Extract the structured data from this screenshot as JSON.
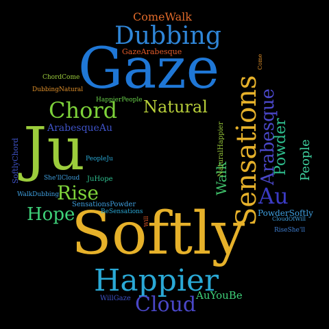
{
  "words": [
    {
      "text": "Gaze",
      "color": "#1f77d6"
    },
    {
      "text": "Softly",
      "color": "#e6b12a"
    },
    {
      "text": "Ju",
      "color": "#9ccd3c"
    },
    {
      "text": "Sensations",
      "color": "#e6b12a"
    },
    {
      "text": "Happier",
      "color": "#2aa9d6"
    },
    {
      "text": "Dubbing",
      "color": "#2f86d8"
    },
    {
      "text": "Chord",
      "color": "#7ed23a"
    },
    {
      "text": "Arabesque",
      "color": "#4a47c8"
    },
    {
      "text": "Natural",
      "color": "#b8cf3a"
    },
    {
      "text": "Au",
      "color": "#3b3bc4"
    },
    {
      "text": "Cloud",
      "color": "#4a47c8"
    },
    {
      "text": "Rise",
      "color": "#7ed23a"
    },
    {
      "text": "Hope",
      "color": "#3fd27a"
    },
    {
      "text": "Powder",
      "color": "#2fbf8f"
    },
    {
      "text": "Walk",
      "color": "#3fc06a"
    },
    {
      "text": "People",
      "color": "#3fd2a0"
    },
    {
      "text": "ComeWalk",
      "color": "#e06a2a"
    },
    {
      "text": "GazeArabesque",
      "color": "#e05a2a"
    },
    {
      "text": "ArabesqueAu",
      "color": "#3f53c8"
    },
    {
      "text": "AuYouBe",
      "color": "#3fd27a"
    },
    {
      "text": "PowderSoftly",
      "color": "#3fa0e0"
    },
    {
      "text": "NaturalHappier",
      "color": "#9ccd3c"
    },
    {
      "text": "ChordCome",
      "color": "#9ccd3c"
    },
    {
      "text": "DubbingNatural",
      "color": "#e0902a"
    },
    {
      "text": "HappierPeople",
      "color": "#6ad24a"
    },
    {
      "text": "PeopleJu",
      "color": "#2aa9d6"
    },
    {
      "text": "JuHope",
      "color": "#2fbf8f"
    },
    {
      "text": "She'llCloud",
      "color": "#3fa0e0"
    },
    {
      "text": "SoftlyChord",
      "color": "#3f53c8"
    },
    {
      "text": "WalkDubbing",
      "color": "#3fa0e0"
    },
    {
      "text": "SensationsPowder",
      "color": "#3fa0e0"
    },
    {
      "text": "BeSensations",
      "color": "#2aa9d6"
    },
    {
      "text": "CloudOfWill",
      "color": "#3fa0e0"
    },
    {
      "text": "RiseShe'll",
      "color": "#3f7ed0"
    },
    {
      "text": "WillGaze",
      "color": "#3f53c8"
    },
    {
      "text": "Will",
      "color": "#e05a2a"
    },
    {
      "text": "Come",
      "color": "#e0902a"
    }
  ]
}
